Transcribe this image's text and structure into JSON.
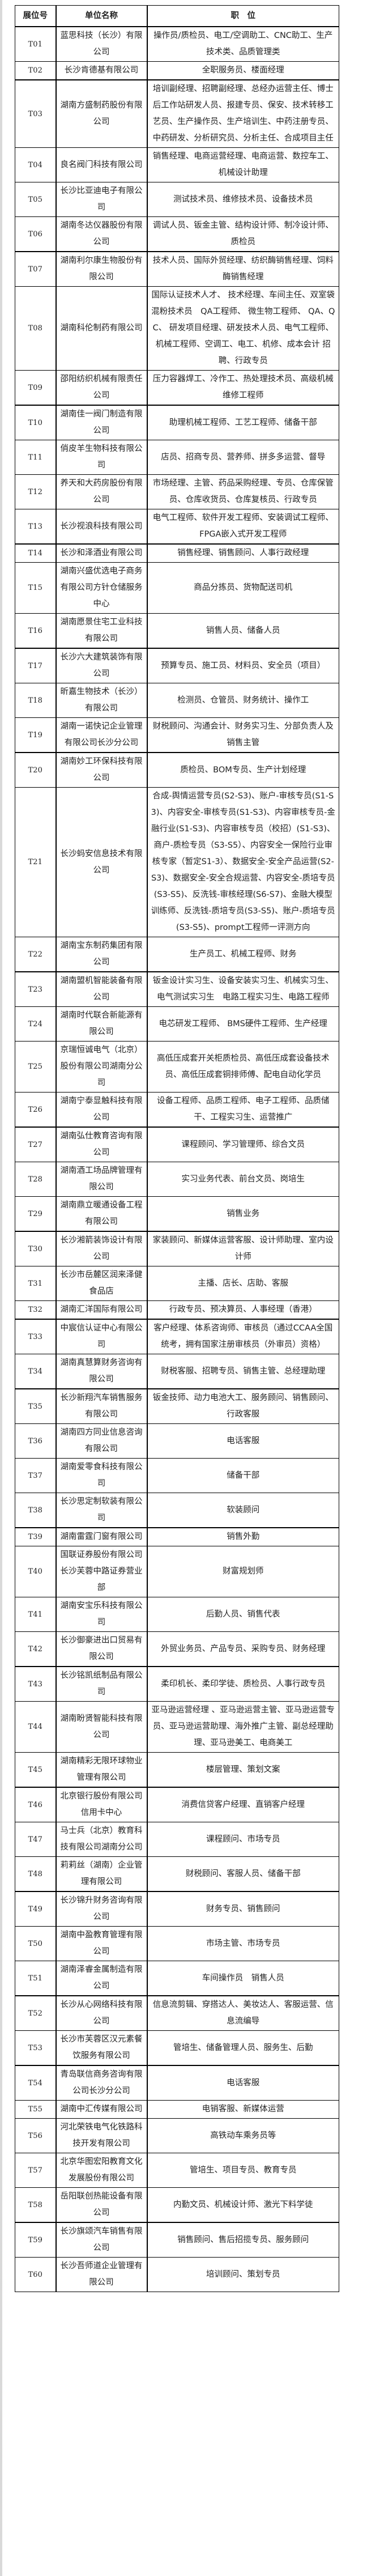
{
  "header": {
    "booth": "展位号",
    "company": "单位名称",
    "positions": "职　位"
  },
  "rows": [
    {
      "booth": "T01",
      "company": "蓝思科技（长沙）有限公司",
      "positions": "操作员/质检员、电工/空调助工、CNC助工、生产技术类、品质管理类"
    },
    {
      "booth": "T02",
      "company": "长沙肯德基有限公司",
      "positions": "全职服务员、楼面经理"
    },
    {
      "booth": "T03",
      "company": "湖南方盛制药股份有限公司",
      "positions": "培训副经理、招聘副经理、总经办运营主任、博士后工作站研发人员、报建专员、保安、技术转移工艺员、生产操作员、生产培训生、中药注册专员、中药研发、分析研究员、分析主任、合成项目主任"
    },
    {
      "booth": "T04",
      "company": "良名阀门科技有限公司",
      "positions": "销售经理、电商运营经理、电商运营、数控车工、机械设计助理"
    },
    {
      "booth": "T05",
      "company": "长沙比亚迪电子有限公司",
      "positions": "测试技术员、维修技术员、设备技术员"
    },
    {
      "booth": "T06",
      "company": "湖南冬达仪器股份有限公司",
      "positions": "调试人员、钣金主管、结构设计师、制冷设计师、质检员"
    },
    {
      "booth": "T07",
      "company": "湖南利尔康生物股份有限公司",
      "positions": "技术人员、国际外贸经理、纺织酶销售经理、饲料酶销售经理"
    },
    {
      "booth": "T08",
      "company": "湖南科伦制药有限公司",
      "positions": "国际认证技术人才、 技术经理、车间主任、双室袋混粉技术员　QA工程师、 微生物工程师、 QA、QC、 研发项目经理、研发技术人员、电气工程师、机械工程师、空调工、电工、机修、成本会计 招聘、行政专员"
    },
    {
      "booth": "T09",
      "company": "邵阳纺织机械有限责任公司",
      "positions": "压力容器焊工、冷作工、热处理技术员、高级机械维修工程师"
    },
    {
      "booth": "T10",
      "company": "湖南佳一阀门制造有限公司",
      "positions": "助理机械工程师、工艺工程师、储备干部"
    },
    {
      "booth": "T11",
      "company": "俏皮羊生物科技有限公司",
      "positions": "店员、招商专员、营养师、拼多多运营、督导"
    },
    {
      "booth": "T12",
      "company": "养天和大药房股份有限公司",
      "positions": "市场经理、主管、药品采购经理、专员、仓库保管员、仓库收货员、仓库复核员、行政专员"
    },
    {
      "booth": "T13",
      "company": "长沙视浪科技有限公司",
      "positions": "电气工程师、软件开发工程师、安装调试工程师、FPGA嵌入式开发工程师"
    },
    {
      "booth": "T14",
      "company": "长沙和泽酒业有限公司",
      "positions": "销售经理、销售顾问、人事行政经理"
    },
    {
      "booth": "T15",
      "company": "湖南兴盛优选电子商务有限公司方针仓储服务中心",
      "positions": "商品分拣员、货物配送司机"
    },
    {
      "booth": "T16",
      "company": "湖南愿景住宅工业科技有限公司",
      "positions": "销售人员、储备人员"
    },
    {
      "booth": "T17",
      "company": "长沙六大建筑装饰有限公司",
      "positions": "预算专员、施工员、材料员、安全员（项目）"
    },
    {
      "booth": "T18",
      "company": "昕嘉生物技术（长沙）有限公司",
      "positions": "检测员、仓管员、财务统计、操作工"
    },
    {
      "booth": "T19",
      "company": "湖南一诺快记企业管理有限公司长沙分公司",
      "positions": "财税顾问、沟通会计、财务实习生、分部负责人及销售主管"
    },
    {
      "booth": "T20",
      "company": "湖南妙工环保科技有限公司",
      "positions": "质检员、BOM专员、生产计划经理"
    },
    {
      "booth": "T21",
      "company": "长沙蚂安信息技术有限公司",
      "positions": "合成-舆情运营专员(S2-S3)、账户-审核专员(S1-S3)、内容安全-审核专员(S1-S3)、内容审核专员-金融行业(S1-S3)、内容审核专员（校招）(S1-S3)、商户-质检专员（S3-S5）、内容安全一保险行业审核专家（暂定S1-3）、数据安全-安全产品运营(S2-S3)、数据安全-安全合规运营、内容安全-质培专员(S3-S5)、反洗钱-审核经理(S6-S7)、金融大模型训练师、反洗钱-质培专员(S3-S5)、账户-质培专员(S3-S5)、prompt工程师一评测方向"
    },
    {
      "booth": "T22",
      "company": "湖南宝东制药集团有限公司",
      "positions": "生产员工、机械工程师、财务"
    },
    {
      "booth": "T23",
      "company": "湖南盟机智能装备有限公司",
      "positions": "钣金设计实习生、设备安装实习生、机械实习生、电气测试实习生　电路工程实习生、电路工程师"
    },
    {
      "booth": "T24",
      "company": "湖南时代联合新能源有限公司",
      "positions": "电芯研发工程师、 BMS硬件工程师、生产经理"
    },
    {
      "booth": "T25",
      "company": "京瑞恒诚电气（北京）股份有限公司湖南分公司",
      "positions": "高低压成套开关柜质检员、高低压成套设备技术员、高低压成套铜排师傅、配电自动化学员"
    },
    {
      "booth": "T26",
      "company": "湖南宁泰显触科技有限公司",
      "positions": "设备工程师、品质工程师、电子工程师、品质储干、工程实习生、运营推广"
    },
    {
      "booth": "T27",
      "company": "湖南弘仕教育咨询有限公司",
      "positions": "课程顾问、学习管理师、综合文员"
    },
    {
      "booth": "T28",
      "company": "湖南酒工场品牌管理有限公司",
      "positions": "实习业务代表、前台文员、岗培生"
    },
    {
      "booth": "T29",
      "company": "湖南鼎立暖通设备工程有限公司",
      "positions": "销售业务"
    },
    {
      "booth": "T30",
      "company": "长沙湘箭装饰设计有限公司",
      "positions": "家装顾问、新媒体运营客服、设计师助理、室内设计师"
    },
    {
      "booth": "T31",
      "company": "长沙市岳麓区润来泽健食品店",
      "positions": "主播、店长、店助、客服"
    },
    {
      "booth": "T32",
      "company": "湖南汇洋国际有限公司",
      "positions": "行政专员、预决算员、人事经理（香港）"
    },
    {
      "booth": "T33",
      "company": "中宸信认证中心有限公司",
      "positions": "客户经理、体系咨询师、审核员（通过CCAA全国统考，拥有国家注册审核员（外审员）资格）"
    },
    {
      "booth": "T34",
      "company": "湖南真慧算财务咨询有限公司",
      "positions": "财税客服、招聘专员、销售主管、总经理助理"
    },
    {
      "booth": "T35",
      "company": "长沙新翔汽车销售服务有限公司",
      "positions": "钣金技师、动力电池大工、服务顾问、销售顾问、行政客服"
    },
    {
      "booth": "T36",
      "company": "湖南四方同业信息咨询有限公司",
      "positions": "电话客服"
    },
    {
      "booth": "T37",
      "company": "湖南爱零食科技有限公司",
      "positions": "储备干部"
    },
    {
      "booth": "T38",
      "company": "长沙思定制软装有限公司",
      "positions": "软装顾问"
    },
    {
      "booth": "T39",
      "company": "湖南雷霆门窗有限公司",
      "positions": "销售外勤"
    },
    {
      "booth": "T40",
      "company": "国联证券股份有限公司长沙芙蓉中路证券营业部",
      "positions": "财富规划师"
    },
    {
      "booth": "T41",
      "company": "湖南安宝乐科技有限公司",
      "positions": "后勤人员、销售代表"
    },
    {
      "booth": "T42",
      "company": "长沙御豪进出口贸易有限公司",
      "positions": "外贸业务员、产品专员、采购专员、财务经理"
    },
    {
      "booth": "T43",
      "company": "长沙铭凯纸制品有限公司",
      "positions": "柔印机长、柔印学徒、质检员、人事行政专员"
    },
    {
      "booth": "T44",
      "company": "湖南盼贤智能科技有限公司",
      "positions": "亚马逊运营经理 、亚马逊运营主管、亚马逊运营专员、亚马逊运营助理、海外推广主管、副总经理助理、亚马逊美工、电商美工"
    },
    {
      "booth": "T45",
      "company": "湖南精彩无限环球物业管理有限公司",
      "positions": "楼层管理、策划文案"
    },
    {
      "booth": "T46",
      "company": "北京银行股份有限公司信用卡中心",
      "positions": "消费信贷客户经理、直销客户经理"
    },
    {
      "booth": "T47",
      "company": "马士兵（北京）教育科技有限公司湖南分公司",
      "positions": "课程顾问、市场专员"
    },
    {
      "booth": "T48",
      "company": "莉莉丝（湖南）企业管理有限公司",
      "positions": "财税顾问、客服人员、储备干部"
    },
    {
      "booth": "T49",
      "company": "长沙锦升财务咨询有限公司",
      "positions": "财务专员、销售顾问"
    },
    {
      "booth": "T50",
      "company": "湖南中盈教育管理有限公司",
      "positions": "市场主管、市场专员"
    },
    {
      "booth": "T51",
      "company": "湖南泽睿金属制造有限公司",
      "positions": "车间操作员　销售人员"
    },
    {
      "booth": "T52",
      "company": "长沙从心网络科技有限公司",
      "positions": "信息流剪辑、穿搭达人、美妆达人、客服运营、信息流编导"
    },
    {
      "booth": "T53",
      "company": "长沙市芙蓉区汉元素餐饮服务有限公司",
      "positions": "管培生、储备管理人员、服务生、后勤"
    },
    {
      "booth": "T54",
      "company": "青岛联信商务咨询有限公司长沙分公司",
      "positions": "电话客服"
    },
    {
      "booth": "T55",
      "company": "湖南中汇传媒有限公司",
      "positions": "电销客服、新媒体运营"
    },
    {
      "booth": "T56",
      "company": "河北荣铁电气化铁路科技开发有限公司",
      "positions": "高铁动车乘务员等"
    },
    {
      "booth": "T57",
      "company": "北京华图宏阳教育文化发展股份有限公司",
      "positions": "管培生、项目专员、教育专员"
    },
    {
      "booth": "T58",
      "company": "岳阳联创热能设备有限公司",
      "positions": "内勤文员、机械设计师、激光下料学徒"
    },
    {
      "booth": "T59",
      "company": "长沙旗颂汽车销售有限公司",
      "positions": "销售顾问、售后招揽专员、服务顾问"
    },
    {
      "booth": "T60",
      "company": "长沙吾师道企业管理有限公司",
      "positions": "培训顾问、策划专员"
    }
  ]
}
